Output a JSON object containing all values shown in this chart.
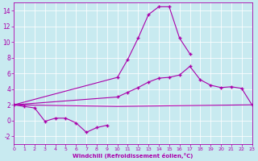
{
  "xlabel": "Windchill (Refroidissement éolien,°C)",
  "background_color": "#c8eaf0",
  "grid_color": "#b8d8e0",
  "line_color": "#aa00aa",
  "xmin": 0,
  "xmax": 23,
  "ymin": -3,
  "ymax": 15,
  "yticks": [
    -2,
    0,
    2,
    4,
    6,
    8,
    10,
    12,
    14
  ],
  "xticks": [
    0,
    1,
    2,
    3,
    4,
    5,
    6,
    7,
    8,
    9,
    10,
    11,
    12,
    13,
    14,
    15,
    16,
    17,
    18,
    19,
    20,
    21,
    22,
    23
  ],
  "series": [
    {
      "x": [
        0,
        1,
        2,
        3,
        4,
        5,
        6,
        7,
        8,
        9
      ],
      "y": [
        2.0,
        1.8,
        1.6,
        -0.1,
        0.3,
        0.3,
        -0.3,
        -1.5,
        -0.9,
        -0.6
      ],
      "has_markers": true
    },
    {
      "x": [
        0,
        10,
        11,
        12,
        13,
        14,
        15,
        16,
        17
      ],
      "y": [
        2.0,
        5.5,
        7.8,
        10.5,
        13.5,
        14.5,
        14.5,
        10.5,
        8.5
      ],
      "has_markers": true
    },
    {
      "x": [
        0,
        10,
        11,
        12,
        13,
        14,
        15,
        16,
        17,
        18,
        19,
        20,
        21,
        22,
        23
      ],
      "y": [
        2.0,
        3.0,
        3.6,
        4.2,
        4.9,
        5.4,
        5.5,
        5.8,
        6.9,
        5.2,
        4.5,
        4.2,
        4.3,
        4.1,
        2.0
      ],
      "has_markers": true
    },
    {
      "x": [
        0,
        10,
        23
      ],
      "y": [
        2.0,
        1.8,
        2.0
      ],
      "has_markers": false
    }
  ]
}
